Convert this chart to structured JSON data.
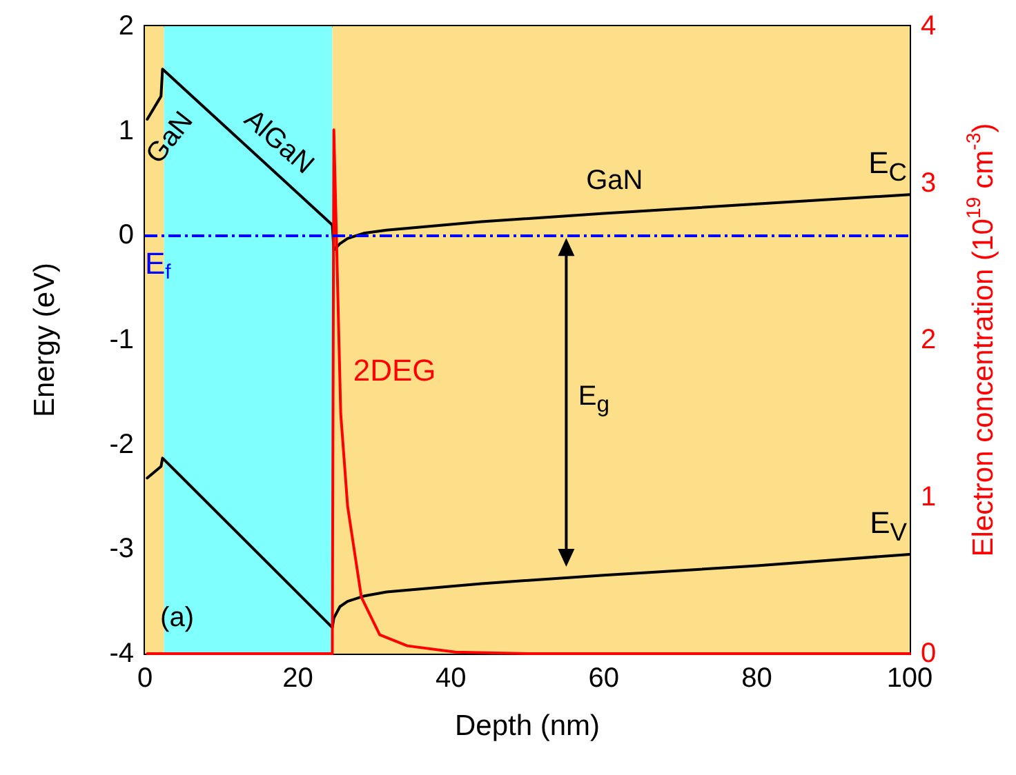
{
  "chart_data": {
    "type": "line",
    "xlabel": "Depth (nm)",
    "ylabel": "Energy (eV)",
    "y2label": "Electron concentration (10$^{19}$ cm$^{-3}$)",
    "xlim": [
      0,
      100
    ],
    "xticks": [
      0,
      20,
      40,
      60,
      80,
      100
    ],
    "ylim": [
      -4,
      2
    ],
    "yticks": [
      -4,
      -3,
      -2,
      -1,
      0,
      1,
      2
    ],
    "y2lim": [
      0,
      4
    ],
    "y2ticks": [
      0,
      1,
      2,
      3,
      4
    ],
    "grid": false,
    "legend": false,
    "marker": "none",
    "line_style": "solid",
    "series": [
      {
        "name": "E$_{C}$",
        "color": "#000000",
        "x": [
          0.3,
          2.1,
          2.3,
          24.5,
          24.7,
          25.5,
          26.5,
          28.6,
          31.6,
          44,
          60,
          80,
          100
        ],
        "values": [
          1.11,
          1.33,
          1.59,
          0.1,
          -0.14,
          -0.08,
          -0.03,
          0.02,
          0.05,
          0.13,
          0.21,
          0.3,
          0.39
        ]
      },
      {
        "name": "E$_{V}$",
        "color": "#000000",
        "x": [
          0.3,
          2.1,
          2.3,
          24.5,
          24.7,
          25.5,
          26.5,
          28.6,
          31.6,
          44,
          60,
          80,
          100
        ],
        "values": [
          -2.32,
          -2.21,
          -2.13,
          -3.75,
          -3.66,
          -3.55,
          -3.5,
          -3.45,
          -3.41,
          -3.33,
          -3.25,
          -3.16,
          -3.05
        ]
      },
      {
        "name": "2DEG",
        "color": "#ff0000",
        "axis": "y2",
        "x": [
          0.3,
          24.5,
          24.7,
          25.6,
          26.5,
          28.3,
          30.7,
          34.3,
          40.6,
          50,
          100
        ],
        "values": [
          0,
          0,
          3.34,
          1.53,
          0.94,
          0.36,
          0.12,
          0.05,
          0.01,
          0,
          0
        ]
      }
    ],
    "ref_lines": [
      {
        "axis": "y",
        "value": 0,
        "label": "E$_{f}$",
        "color": "#0000ff",
        "line_style": "dashed"
      }
    ],
    "bands": [
      {
        "axis": "x",
        "from": 0,
        "to": 2.5,
        "color": "#fcdf88"
      },
      {
        "axis": "x",
        "from": 2.5,
        "to": 24.5,
        "color": "#80ffff"
      },
      {
        "axis": "x",
        "from": 24.5,
        "to": 100,
        "color": "#fcdf88"
      }
    ],
    "annotations": [
      "GaN",
      "AlGaN",
      "GaN",
      "E$_{g}$",
      "(a)"
    ]
  }
}
